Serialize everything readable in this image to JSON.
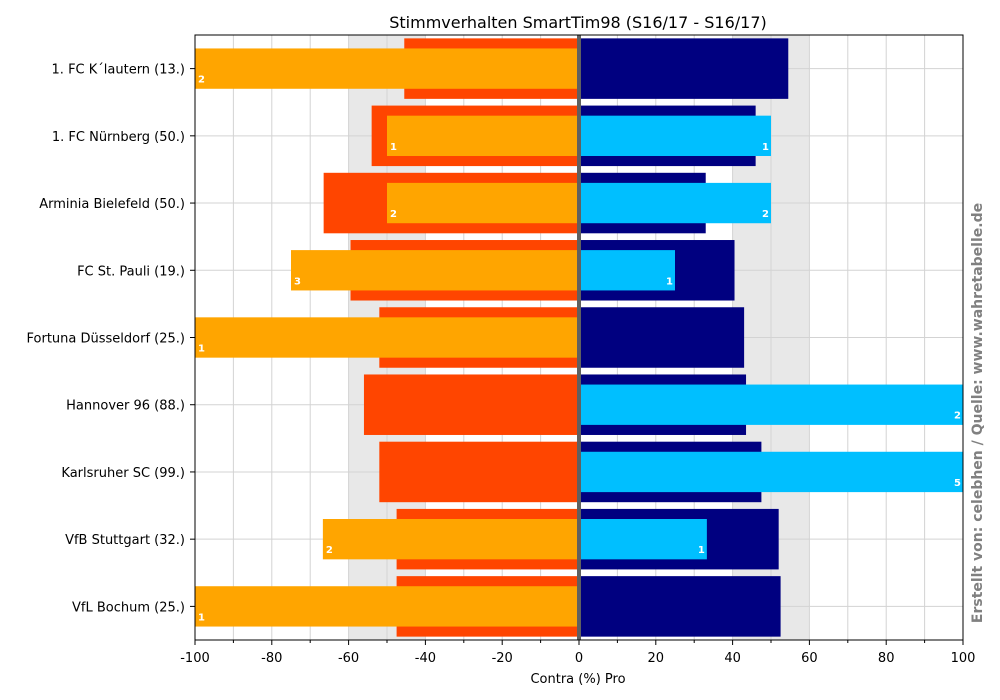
{
  "chart_data": {
    "type": "bar",
    "orientation": "horizontal",
    "title": "Stimmverhalten SmartTim98 (S16/17 - S16/17)",
    "xlabel": "Contra  (%)  Pro",
    "credit": "Erstellt von: celebhen / Quelle: www.wahretabelle.de",
    "xlim": [
      -100,
      100
    ],
    "xticks": [
      -100,
      -80,
      -60,
      -40,
      -20,
      0,
      20,
      40,
      60,
      80,
      100
    ],
    "shaded_bands": [
      [
        -60,
        -40
      ],
      [
        40,
        60
      ]
    ],
    "grid": true,
    "colors": {
      "contra_total": "#ff4500",
      "contra_user": "#ffa500",
      "pro_total": "#000080",
      "pro_user": "#00bfff",
      "zero_line": "#606060",
      "band": "#e8e8e8"
    },
    "categories": [
      "1. FC K´lautern (13.)",
      "1. FC Nürnberg (50.)",
      "Arminia Bielefeld (50.)",
      "FC St. Pauli (19.)",
      "Fortuna Düsseldorf (25.)",
      "Hannover 96 (88.)",
      "Karlsruher SC (99.)",
      "VfB Stuttgart (32.)",
      "VfL Bochum (25.)"
    ],
    "series": [
      {
        "name": "",
        "role": "contra_total",
        "values": [
          -45.5,
          -54,
          -66.5,
          -59.5,
          -52,
          -56,
          -52,
          -47.5,
          -47.5
        ]
      },
      {
        "name": "",
        "role": "pro_total",
        "values": [
          54.5,
          46,
          33,
          40.5,
          43,
          43.5,
          47.5,
          52,
          52.5
        ]
      },
      {
        "name": "",
        "role": "contra_user",
        "values": [
          -100,
          -50,
          -50,
          -75,
          -100,
          null,
          null,
          -66.7,
          -100
        ],
        "labels": [
          "2",
          "1",
          "2",
          "3",
          "1",
          null,
          null,
          "2",
          "1"
        ]
      },
      {
        "name": "",
        "role": "pro_user",
        "values": [
          null,
          50,
          50,
          25,
          null,
          100,
          100,
          33.3,
          null
        ],
        "labels": [
          null,
          "1",
          "2",
          "1",
          null,
          "2",
          "5",
          "1",
          null
        ]
      }
    ]
  }
}
